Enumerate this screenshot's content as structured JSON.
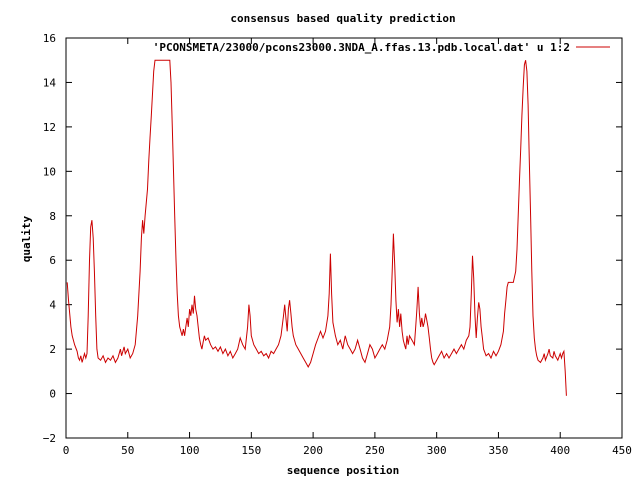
{
  "chart_data": {
    "type": "line",
    "title": "consensus based quality prediction",
    "xlabel": "sequence position",
    "ylabel": "quality",
    "xlim": [
      0,
      450
    ],
    "ylim": [
      -2,
      16
    ],
    "xticks": [
      0,
      50,
      100,
      150,
      200,
      250,
      300,
      350,
      400,
      450
    ],
    "yticks": [
      -2,
      0,
      2,
      4,
      6,
      8,
      10,
      12,
      14,
      16
    ],
    "grid": false,
    "legend_position": "top-right",
    "series": [
      {
        "name": "'PCONSMETA/23000/pcons23000.3NDA_A.ffas.13.pdb.local.dat' u 1:2",
        "color": "#cc0000",
        "points": [
          [
            1,
            5.0
          ],
          [
            2,
            4.2
          ],
          [
            3,
            3.6
          ],
          [
            4,
            3.0
          ],
          [
            5,
            2.6
          ],
          [
            7,
            2.2
          ],
          [
            9,
            1.9
          ],
          [
            10,
            1.6
          ],
          [
            11,
            1.5
          ],
          [
            12,
            1.7
          ],
          [
            13,
            1.4
          ],
          [
            14,
            1.6
          ],
          [
            15,
            1.8
          ],
          [
            16,
            1.6
          ],
          [
            17,
            1.8
          ],
          [
            18,
            3.5
          ],
          [
            19,
            6.0
          ],
          [
            20,
            7.5
          ],
          [
            21,
            7.8
          ],
          [
            22,
            7.0
          ],
          [
            23,
            5.5
          ],
          [
            24,
            3.5
          ],
          [
            25,
            2.0
          ],
          [
            26,
            1.6
          ],
          [
            28,
            1.5
          ],
          [
            30,
            1.7
          ],
          [
            32,
            1.4
          ],
          [
            34,
            1.6
          ],
          [
            36,
            1.5
          ],
          [
            38,
            1.7
          ],
          [
            40,
            1.4
          ],
          [
            42,
            1.6
          ],
          [
            44,
            2.0
          ],
          [
            45,
            1.7
          ],
          [
            47,
            2.1
          ],
          [
            48,
            1.8
          ],
          [
            50,
            2.0
          ],
          [
            52,
            1.6
          ],
          [
            54,
            1.8
          ],
          [
            56,
            2.2
          ],
          [
            58,
            3.5
          ],
          [
            60,
            5.5
          ],
          [
            61,
            7.0
          ],
          [
            62,
            7.8
          ],
          [
            63,
            7.2
          ],
          [
            64,
            8.0
          ],
          [
            65,
            8.6
          ],
          [
            66,
            9.2
          ],
          [
            67,
            10.5
          ],
          [
            68,
            11.5
          ],
          [
            69,
            12.5
          ],
          [
            70,
            13.5
          ],
          [
            71,
            14.5
          ],
          [
            72,
            15.0
          ],
          [
            75,
            15.0
          ],
          [
            78,
            15.0
          ],
          [
            80,
            15.0
          ],
          [
            82,
            15.0
          ],
          [
            84,
            15.0
          ],
          [
            85,
            14.0
          ],
          [
            86,
            12.0
          ],
          [
            87,
            10.0
          ],
          [
            88,
            8.0
          ],
          [
            89,
            6.0
          ],
          [
            90,
            4.5
          ],
          [
            91,
            3.5
          ],
          [
            92,
            3.0
          ],
          [
            93,
            2.8
          ],
          [
            94,
            2.6
          ],
          [
            95,
            2.9
          ],
          [
            96,
            2.6
          ],
          [
            97,
            3.0
          ],
          [
            98,
            3.4
          ],
          [
            99,
            3.0
          ],
          [
            100,
            3.8
          ],
          [
            101,
            3.5
          ],
          [
            102,
            4.0
          ],
          [
            103,
            3.6
          ],
          [
            104,
            4.4
          ],
          [
            105,
            3.8
          ],
          [
            106,
            3.5
          ],
          [
            107,
            3.0
          ],
          [
            108,
            2.5
          ],
          [
            109,
            2.2
          ],
          [
            110,
            2.0
          ],
          [
            111,
            2.3
          ],
          [
            112,
            2.6
          ],
          [
            113,
            2.4
          ],
          [
            115,
            2.5
          ],
          [
            117,
            2.2
          ],
          [
            119,
            2.0
          ],
          [
            121,
            2.1
          ],
          [
            123,
            1.9
          ],
          [
            125,
            2.1
          ],
          [
            127,
            1.8
          ],
          [
            129,
            2.0
          ],
          [
            131,
            1.7
          ],
          [
            133,
            1.9
          ],
          [
            135,
            1.6
          ],
          [
            137,
            1.8
          ],
          [
            139,
            2.0
          ],
          [
            141,
            2.5
          ],
          [
            143,
            2.2
          ],
          [
            145,
            2.0
          ],
          [
            147,
            3.0
          ],
          [
            148,
            4.0
          ],
          [
            149,
            3.5
          ],
          [
            150,
            2.6
          ],
          [
            152,
            2.2
          ],
          [
            154,
            2.0
          ],
          [
            156,
            1.8
          ],
          [
            158,
            1.9
          ],
          [
            160,
            1.7
          ],
          [
            162,
            1.8
          ],
          [
            164,
            1.6
          ],
          [
            166,
            1.9
          ],
          [
            168,
            1.8
          ],
          [
            170,
            2.0
          ],
          [
            172,
            2.2
          ],
          [
            174,
            2.6
          ],
          [
            176,
            3.5
          ],
          [
            177,
            4.0
          ],
          [
            178,
            3.4
          ],
          [
            179,
            2.8
          ],
          [
            180,
            3.8
          ],
          [
            181,
            4.2
          ],
          [
            182,
            3.6
          ],
          [
            183,
            3.0
          ],
          [
            184,
            2.6
          ],
          [
            186,
            2.2
          ],
          [
            188,
            2.0
          ],
          [
            190,
            1.8
          ],
          [
            192,
            1.6
          ],
          [
            194,
            1.4
          ],
          [
            196,
            1.2
          ],
          [
            198,
            1.4
          ],
          [
            200,
            1.8
          ],
          [
            202,
            2.2
          ],
          [
            204,
            2.5
          ],
          [
            206,
            2.8
          ],
          [
            208,
            2.5
          ],
          [
            210,
            2.8
          ],
          [
            212,
            3.5
          ],
          [
            213,
            4.5
          ],
          [
            214,
            6.3
          ],
          [
            215,
            4.5
          ],
          [
            216,
            3.2
          ],
          [
            218,
            2.6
          ],
          [
            220,
            2.2
          ],
          [
            222,
            2.4
          ],
          [
            224,
            2.0
          ],
          [
            226,
            2.6
          ],
          [
            228,
            2.2
          ],
          [
            230,
            2.0
          ],
          [
            232,
            1.8
          ],
          [
            234,
            2.0
          ],
          [
            236,
            2.4
          ],
          [
            238,
            2.0
          ],
          [
            240,
            1.6
          ],
          [
            242,
            1.4
          ],
          [
            244,
            1.8
          ],
          [
            246,
            2.2
          ],
          [
            248,
            2.0
          ],
          [
            250,
            1.6
          ],
          [
            252,
            1.8
          ],
          [
            254,
            2.0
          ],
          [
            256,
            2.2
          ],
          [
            258,
            2.0
          ],
          [
            260,
            2.4
          ],
          [
            262,
            3.0
          ],
          [
            263,
            4.0
          ],
          [
            264,
            5.5
          ],
          [
            265,
            7.2
          ],
          [
            266,
            5.8
          ],
          [
            267,
            4.2
          ],
          [
            268,
            3.2
          ],
          [
            269,
            3.8
          ],
          [
            270,
            3.0
          ],
          [
            271,
            3.6
          ],
          [
            272,
            2.8
          ],
          [
            273,
            2.4
          ],
          [
            274,
            2.2
          ],
          [
            275,
            2.0
          ],
          [
            276,
            2.6
          ],
          [
            277,
            2.2
          ],
          [
            278,
            2.6
          ],
          [
            280,
            2.4
          ],
          [
            282,
            2.2
          ],
          [
            283,
            3.0
          ],
          [
            284,
            3.8
          ],
          [
            285,
            4.8
          ],
          [
            286,
            3.6
          ],
          [
            287,
            3.0
          ],
          [
            288,
            3.4
          ],
          [
            289,
            3.0
          ],
          [
            290,
            3.2
          ],
          [
            291,
            3.6
          ],
          [
            292,
            3.3
          ],
          [
            293,
            3.0
          ],
          [
            294,
            2.5
          ],
          [
            295,
            2.0
          ],
          [
            296,
            1.6
          ],
          [
            297,
            1.4
          ],
          [
            298,
            1.3
          ],
          [
            300,
            1.5
          ],
          [
            302,
            1.7
          ],
          [
            304,
            1.9
          ],
          [
            306,
            1.6
          ],
          [
            308,
            1.8
          ],
          [
            310,
            1.6
          ],
          [
            312,
            1.8
          ],
          [
            314,
            2.0
          ],
          [
            316,
            1.8
          ],
          [
            318,
            2.0
          ],
          [
            320,
            2.2
          ],
          [
            322,
            2.0
          ],
          [
            324,
            2.4
          ],
          [
            326,
            2.6
          ],
          [
            327,
            3.0
          ],
          [
            328,
            4.5
          ],
          [
            329,
            6.2
          ],
          [
            330,
            5.2
          ],
          [
            331,
            3.5
          ],
          [
            332,
            2.5
          ],
          [
            333,
            3.4
          ],
          [
            334,
            4.1
          ],
          [
            335,
            3.8
          ],
          [
            336,
            3.0
          ],
          [
            337,
            2.5
          ],
          [
            338,
            2.0
          ],
          [
            340,
            1.7
          ],
          [
            342,
            1.8
          ],
          [
            344,
            1.6
          ],
          [
            346,
            1.9
          ],
          [
            348,
            1.7
          ],
          [
            350,
            1.9
          ],
          [
            352,
            2.2
          ],
          [
            354,
            2.8
          ],
          [
            355,
            3.6
          ],
          [
            356,
            4.2
          ],
          [
            357,
            4.8
          ],
          [
            358,
            5.0
          ],
          [
            360,
            5.0
          ],
          [
            362,
            5.0
          ],
          [
            364,
            5.5
          ],
          [
            365,
            6.5
          ],
          [
            366,
            8.0
          ],
          [
            367,
            9.5
          ],
          [
            368,
            11.0
          ],
          [
            369,
            12.5
          ],
          [
            370,
            13.8
          ],
          [
            371,
            14.8
          ],
          [
            372,
            15.0
          ],
          [
            373,
            14.5
          ],
          [
            374,
            13.0
          ],
          [
            375,
            10.5
          ],
          [
            376,
            8.0
          ],
          [
            377,
            5.5
          ],
          [
            378,
            3.5
          ],
          [
            379,
            2.5
          ],
          [
            380,
            2.0
          ],
          [
            381,
            1.7
          ],
          [
            382,
            1.5
          ],
          [
            384,
            1.4
          ],
          [
            386,
            1.6
          ],
          [
            387,
            1.8
          ],
          [
            388,
            1.5
          ],
          [
            390,
            1.8
          ],
          [
            391,
            2.0
          ],
          [
            392,
            1.7
          ],
          [
            394,
            1.6
          ],
          [
            395,
            1.9
          ],
          [
            396,
            1.7
          ],
          [
            398,
            1.5
          ],
          [
            400,
            1.8
          ],
          [
            401,
            1.6
          ],
          [
            402,
            1.8
          ],
          [
            403,
            1.9
          ],
          [
            404,
            1.0
          ],
          [
            405,
            -0.1
          ]
        ]
      }
    ]
  }
}
